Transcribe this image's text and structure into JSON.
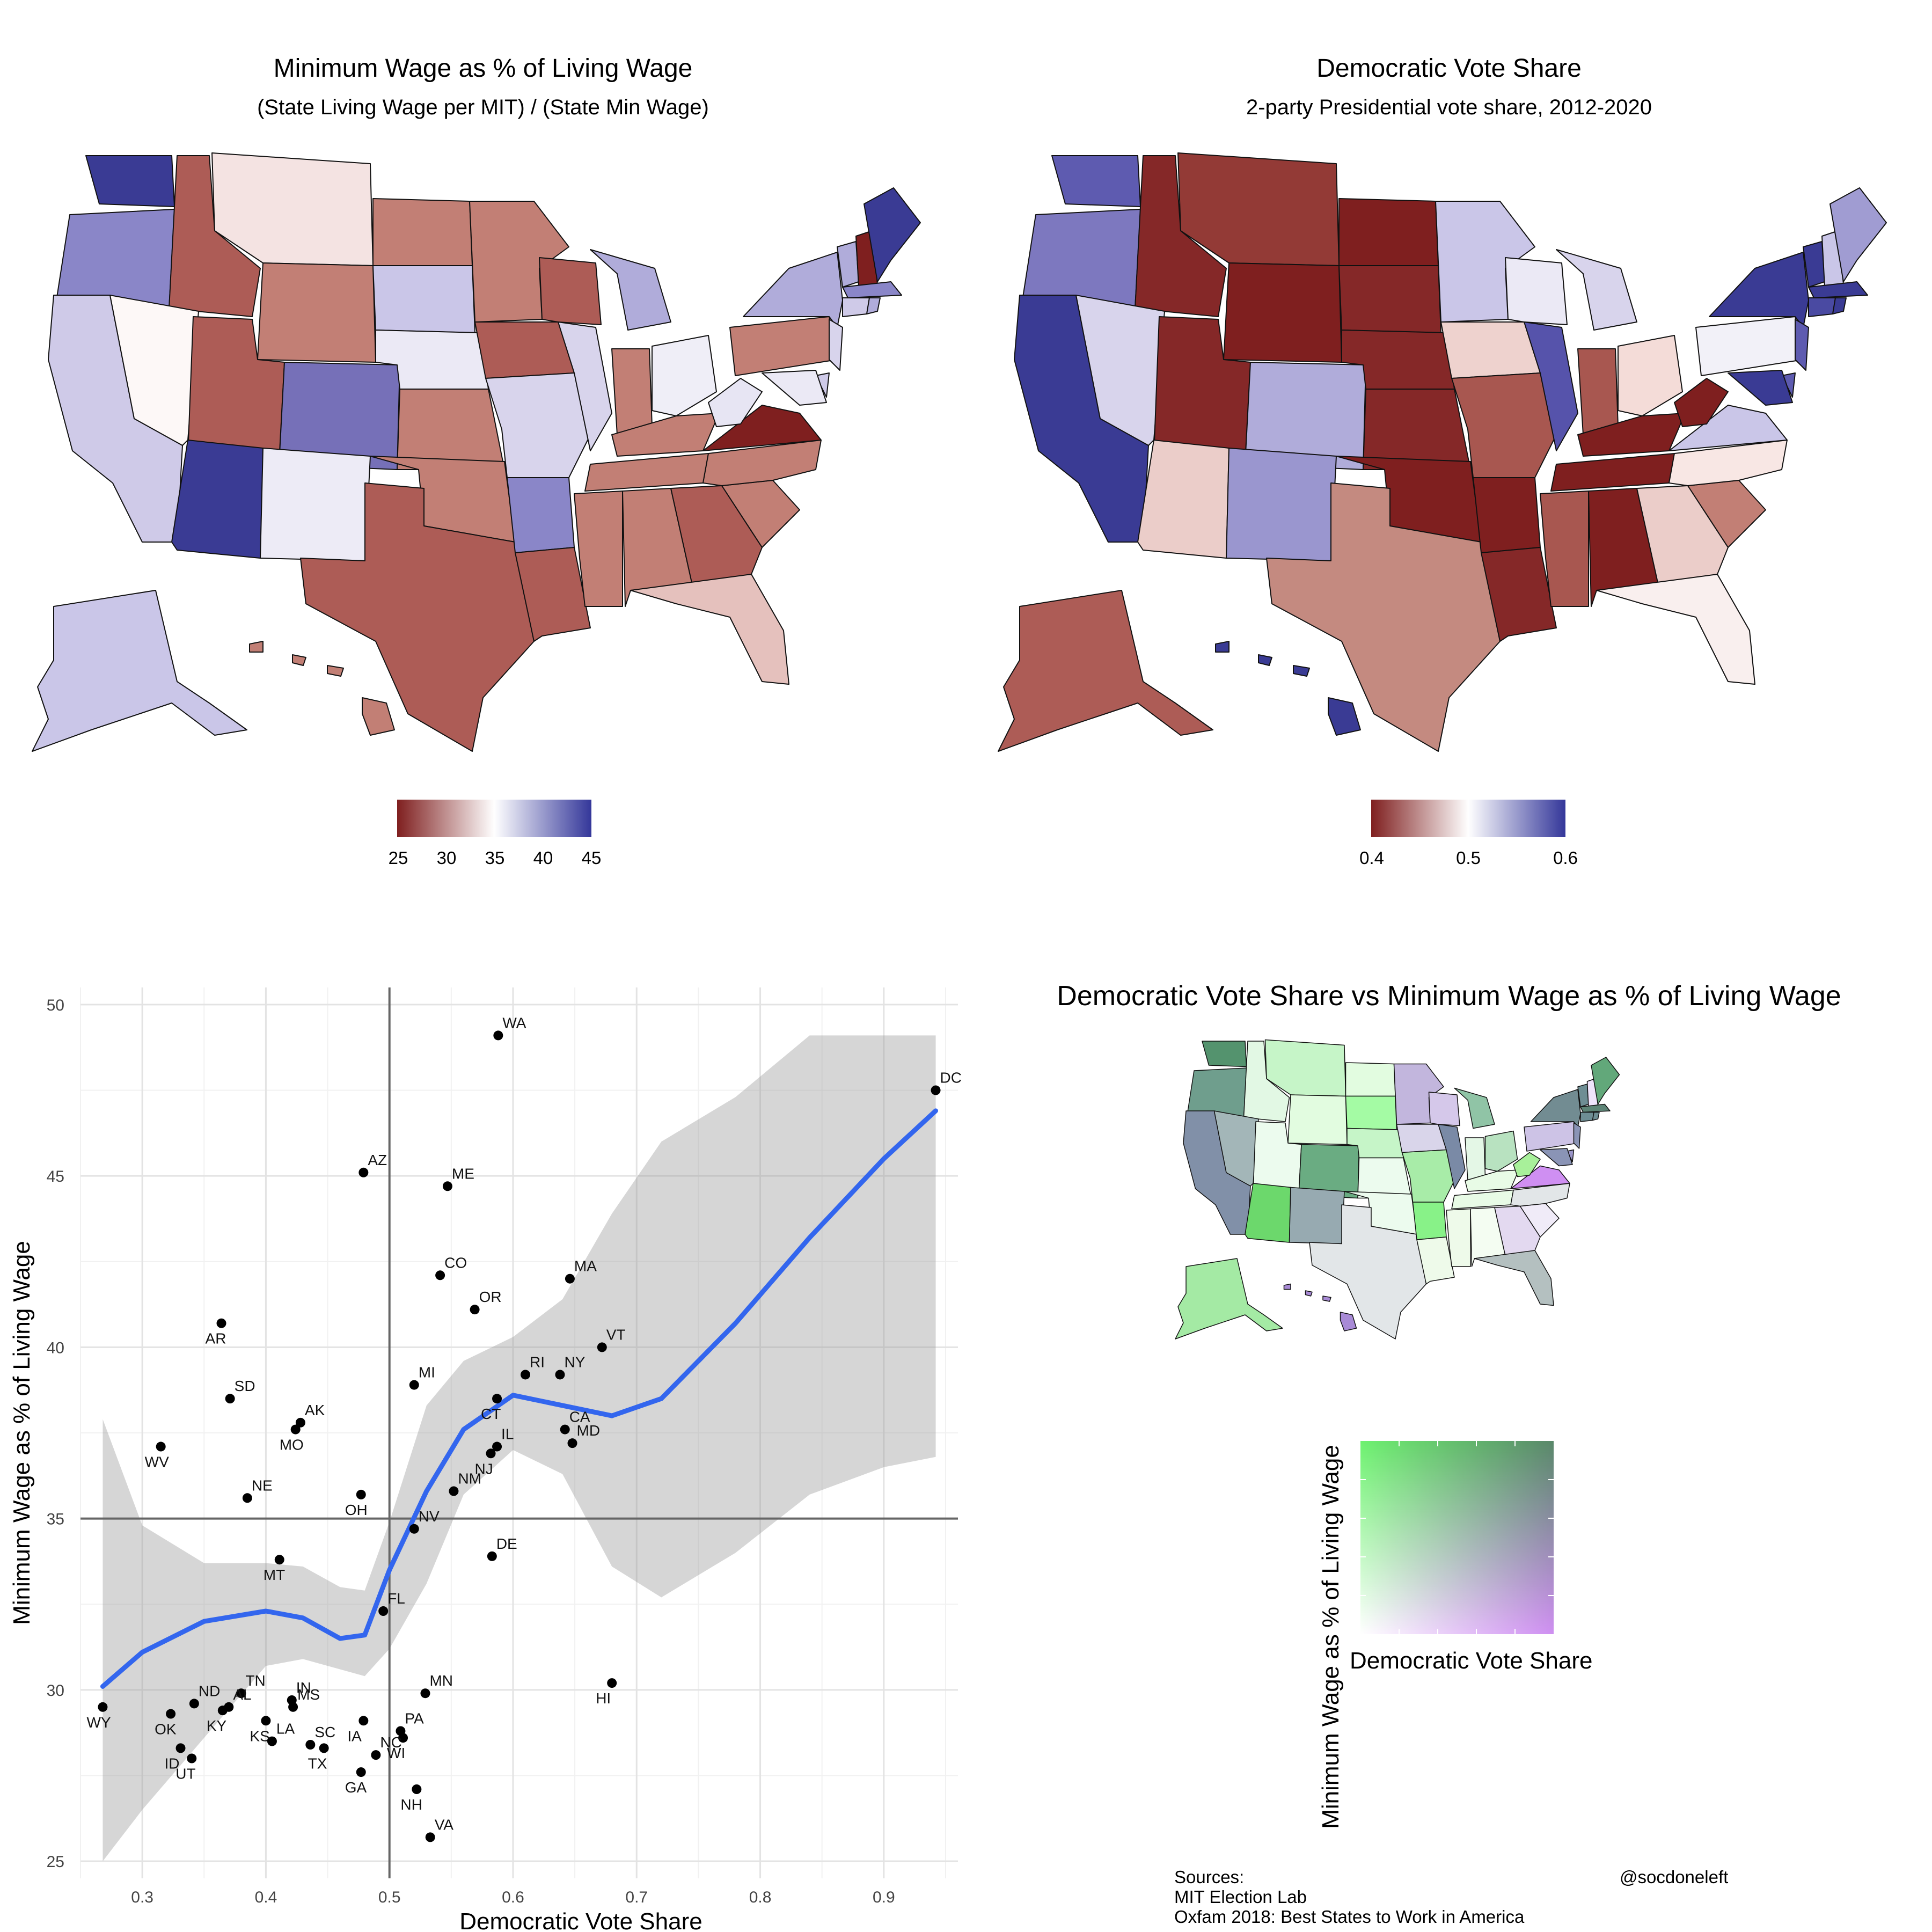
{
  "map_left": {
    "title": "Minimum Wage as % of Living Wage",
    "subtitle": "(State Living Wage per MIT) / (State Min Wage)",
    "legend_ticks": [
      "25",
      "30",
      "35",
      "40",
      "45"
    ],
    "colors": {
      "low": "#7f1f1f",
      "mid": "#ffffff",
      "high": "#34379a"
    }
  },
  "map_right": {
    "title": "Democratic Vote Share",
    "subtitle": "2-party Presidential vote share, 2012-2020",
    "legend_ticks": [
      "0.4",
      "0.5",
      "0.6"
    ],
    "colors": {
      "low": "#7f1f1f",
      "mid": "#ffffff",
      "high": "#34379a"
    }
  },
  "bivariate": {
    "title": "Democratic Vote Share vs Minimum Wage as % of Living Wage",
    "legend_xlabel": "Democratic Vote Share",
    "legend_ylabel": "Minimum Wage as % of Living Wage",
    "colors": {
      "high_wage_low_vote": "#6df26f",
      "high_wage_high_vote": "#4f8c71",
      "low_wage_low_vote": "#ffffff",
      "low_wage_high_vote": "#cf8ff2"
    }
  },
  "credits": {
    "sources_label": "Sources:",
    "source_1": "MIT Election Lab",
    "source_2": "Oxfam 2018: Best States to Work in America",
    "handle": "@socdoneleft"
  },
  "chart_data": {
    "type": "scatter",
    "title": "",
    "xlabel": "Democratic Vote Share",
    "ylabel": "Minimum Wage as % of Living Wage",
    "xlim": [
      0.25,
      0.96
    ],
    "ylim": [
      24.5,
      50.5
    ],
    "x_ticks": [
      0.3,
      0.4,
      0.5,
      0.6,
      0.7,
      0.8,
      0.9
    ],
    "y_ticks": [
      25,
      30,
      35,
      40,
      45,
      50
    ],
    "reference_lines": {
      "x": 0.5,
      "y": 35
    },
    "points": [
      {
        "label": "WA",
        "x": 0.588,
        "y": 49.1
      },
      {
        "label": "DC",
        "x": 0.942,
        "y": 47.5
      },
      {
        "label": "AZ",
        "x": 0.479,
        "y": 45.1
      },
      {
        "label": "ME",
        "x": 0.547,
        "y": 44.7
      },
      {
        "label": "CO",
        "x": 0.541,
        "y": 42.1
      },
      {
        "label": "MA",
        "x": 0.646,
        "y": 42.0
      },
      {
        "label": "OR",
        "x": 0.569,
        "y": 41.1
      },
      {
        "label": "AR",
        "x": 0.364,
        "y": 40.7
      },
      {
        "label": "VT",
        "x": 0.672,
        "y": 40.0
      },
      {
        "label": "RI",
        "x": 0.61,
        "y": 39.2
      },
      {
        "label": "NY",
        "x": 0.638,
        "y": 39.2
      },
      {
        "label": "MI",
        "x": 0.52,
        "y": 38.9
      },
      {
        "label": "SD",
        "x": 0.371,
        "y": 38.5
      },
      {
        "label": "CT",
        "x": 0.587,
        "y": 38.5
      },
      {
        "label": "AK",
        "x": 0.428,
        "y": 37.8
      },
      {
        "label": "MO",
        "x": 0.424,
        "y": 37.6
      },
      {
        "label": "CA",
        "x": 0.642,
        "y": 37.6
      },
      {
        "label": "MD",
        "x": 0.648,
        "y": 37.2
      },
      {
        "label": "WV",
        "x": 0.315,
        "y": 37.1
      },
      {
        "label": "IL",
        "x": 0.587,
        "y": 37.1
      },
      {
        "label": "NJ",
        "x": 0.582,
        "y": 36.9
      },
      {
        "label": "NM",
        "x": 0.552,
        "y": 35.8
      },
      {
        "label": "OH",
        "x": 0.477,
        "y": 35.7
      },
      {
        "label": "NE",
        "x": 0.385,
        "y": 35.6
      },
      {
        "label": "NV",
        "x": 0.52,
        "y": 34.7
      },
      {
        "label": "DE",
        "x": 0.583,
        "y": 33.9
      },
      {
        "label": "MT",
        "x": 0.411,
        "y": 33.8
      },
      {
        "label": "FL",
        "x": 0.495,
        "y": 32.3
      },
      {
        "label": "HI",
        "x": 0.68,
        "y": 30.2
      },
      {
        "label": "TN",
        "x": 0.38,
        "y": 29.9
      },
      {
        "label": "MN",
        "x": 0.529,
        "y": 29.9
      },
      {
        "label": "IN",
        "x": 0.421,
        "y": 29.7
      },
      {
        "label": "ND",
        "x": 0.342,
        "y": 29.6
      },
      {
        "label": "MS",
        "x": 0.422,
        "y": 29.5
      },
      {
        "label": "WY",
        "x": 0.268,
        "y": 29.5
      },
      {
        "label": "AL",
        "x": 0.37,
        "y": 29.5
      },
      {
        "label": "KY",
        "x": 0.365,
        "y": 29.4
      },
      {
        "label": "OK",
        "x": 0.323,
        "y": 29.3
      },
      {
        "label": "IA",
        "x": 0.479,
        "y": 29.1
      },
      {
        "label": "KS",
        "x": 0.4,
        "y": 29.1
      },
      {
        "label": "PA",
        "x": 0.509,
        "y": 28.8
      },
      {
        "label": "WI",
        "x": 0.511,
        "y": 28.6
      },
      {
        "label": "LA",
        "x": 0.405,
        "y": 28.5
      },
      {
        "label": "SC",
        "x": 0.436,
        "y": 28.4
      },
      {
        "label": "ID",
        "x": 0.331,
        "y": 28.3
      },
      {
        "label": "TX",
        "x": 0.447,
        "y": 28.3
      },
      {
        "label": "NC",
        "x": 0.489,
        "y": 28.1
      },
      {
        "label": "UT",
        "x": 0.34,
        "y": 28.0
      },
      {
        "label": "GA",
        "x": 0.477,
        "y": 27.6
      },
      {
        "label": "NH",
        "x": 0.522,
        "y": 27.1
      },
      {
        "label": "VA",
        "x": 0.533,
        "y": 25.7
      }
    ],
    "smooth": {
      "x": [
        0.268,
        0.3,
        0.35,
        0.4,
        0.43,
        0.46,
        0.48,
        0.5,
        0.53,
        0.56,
        0.6,
        0.64,
        0.68,
        0.72,
        0.78,
        0.84,
        0.9,
        0.942
      ],
      "y": [
        30.1,
        31.1,
        32.0,
        32.3,
        32.1,
        31.5,
        31.6,
        33.5,
        35.8,
        37.6,
        38.6,
        38.3,
        38.0,
        38.5,
        40.7,
        43.2,
        45.5,
        46.9
      ],
      "lower": [
        25.0,
        26.5,
        28.6,
        30.7,
        30.9,
        30.6,
        30.4,
        31.2,
        33.1,
        35.7,
        37.0,
        36.3,
        33.6,
        32.7,
        34.0,
        35.7,
        36.5,
        36.8
      ],
      "upper": [
        37.9,
        34.8,
        33.7,
        33.7,
        33.6,
        33.0,
        32.9,
        34.9,
        38.3,
        39.6,
        40.3,
        41.4,
        43.9,
        46.0,
        47.3,
        49.1,
        49.1,
        49.1
      ]
    },
    "grid": true
  }
}
